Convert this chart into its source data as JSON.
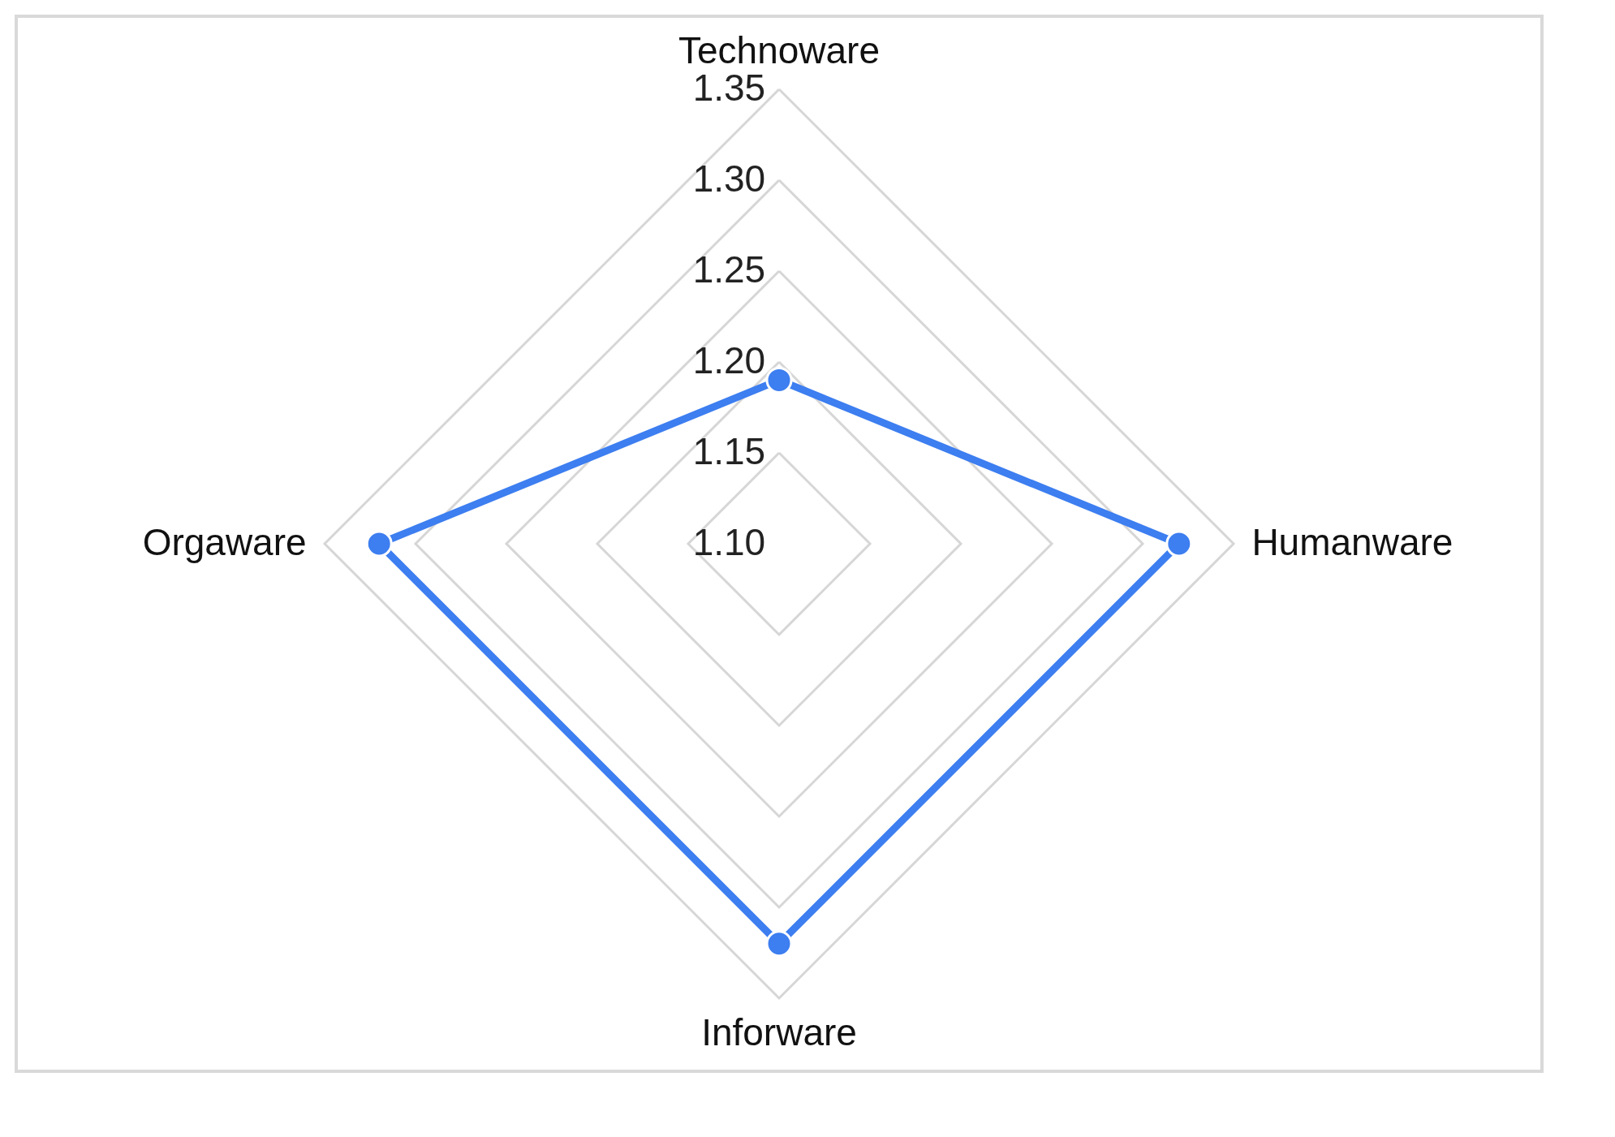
{
  "chart_data": {
    "type": "radar",
    "categories": [
      "Technoware",
      "Humanware",
      "Inforware",
      "Orgaware"
    ],
    "series": [
      {
        "color": "#3d7ef0",
        "values": [
          1.19,
          1.32,
          1.32,
          1.32
        ]
      }
    ],
    "ylim": [
      1.1,
      1.35
    ],
    "yticks": [
      {
        "value": 1.1,
        "label": "1.10"
      },
      {
        "value": 1.15,
        "label": "1.15"
      },
      {
        "value": 1.2,
        "label": "1.20"
      },
      {
        "value": 1.25,
        "label": "1.25"
      },
      {
        "value": 1.3,
        "label": "1.30"
      },
      {
        "value": 1.35,
        "label": "1.35"
      }
    ],
    "grid": true,
    "marker": "circle",
    "line_style": "solid"
  }
}
